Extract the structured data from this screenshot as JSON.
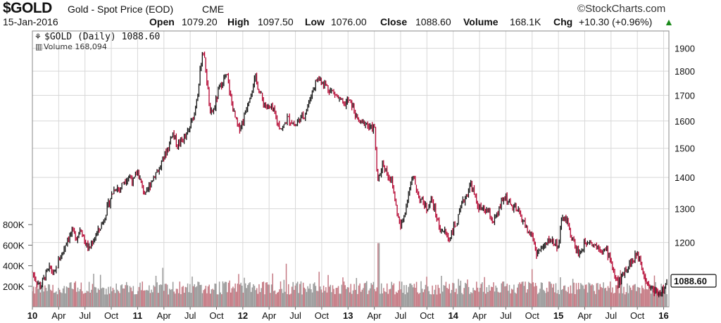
{
  "header": {
    "symbol": "$GOLD",
    "description": "Gold - Spot Price (EOD)",
    "exchange": "CME",
    "brand": "StockCharts.com",
    "date": "15-Jan-2016",
    "open_label": "Open",
    "open": "1079.20",
    "high_label": "High",
    "high": "1097.50",
    "low_label": "Low",
    "low": "1076.00",
    "close_label": "Close",
    "close": "1088.60",
    "volume_label": "Volume",
    "volume": "168.1K",
    "chg_label": "Chg",
    "chg": "+10.30 (+0.96%)",
    "up_color": "#1a8a1a"
  },
  "legend": {
    "price_label": "$GOLD (Daily) 1088.60",
    "volume_label": "Volume 168,094"
  },
  "last_price_tag": "1088.60",
  "chart_data": {
    "type": "ohlc",
    "price_scale": "log",
    "ylim_price": [
      1055,
      1960
    ],
    "price_ticks": [
      1200,
      1300,
      1400,
      1500,
      1600,
      1700,
      1800,
      1900
    ],
    "volume_ticks": [
      "200K",
      "400K",
      "600K",
      "800K"
    ],
    "volume_tick_values": [
      200000,
      400000,
      600000,
      800000
    ],
    "ylim_volume": [
      0,
      1000000
    ],
    "x_ticks": [
      {
        "label": "10",
        "t": 2010.0,
        "year": true
      },
      {
        "label": "Apr",
        "t": 2010.25
      },
      {
        "label": "Jul",
        "t": 2010.5
      },
      {
        "label": "Oct",
        "t": 2010.75
      },
      {
        "label": "11",
        "t": 2011.0,
        "year": true
      },
      {
        "label": "Apr",
        "t": 2011.25
      },
      {
        "label": "Jul",
        "t": 2011.5
      },
      {
        "label": "Oct",
        "t": 2011.75
      },
      {
        "label": "12",
        "t": 2012.0,
        "year": true
      },
      {
        "label": "Apr",
        "t": 2012.25
      },
      {
        "label": "Jul",
        "t": 2012.5
      },
      {
        "label": "Oct",
        "t": 2012.75
      },
      {
        "label": "13",
        "t": 2013.0,
        "year": true
      },
      {
        "label": "Apr",
        "t": 2013.25
      },
      {
        "label": "Jul",
        "t": 2013.5
      },
      {
        "label": "Oct",
        "t": 2013.75
      },
      {
        "label": "14",
        "t": 2014.0,
        "year": true
      },
      {
        "label": "Apr",
        "t": 2014.25
      },
      {
        "label": "Jul",
        "t": 2014.5
      },
      {
        "label": "Oct",
        "t": 2014.75
      },
      {
        "label": "15",
        "t": 2015.0,
        "year": true
      },
      {
        "label": "Apr",
        "t": 2015.25
      },
      {
        "label": "Jul",
        "t": 2015.5
      },
      {
        "label": "Oct",
        "t": 2015.75
      },
      {
        "label": "16",
        "t": 2016.0,
        "year": true
      }
    ],
    "xlim": [
      2010.0,
      2016.05
    ],
    "price_series": [
      [
        2010.0,
        1118
      ],
      [
        2010.04,
        1095
      ],
      [
        2010.08,
        1080
      ],
      [
        2010.12,
        1110
      ],
      [
        2010.17,
        1130
      ],
      [
        2010.21,
        1110
      ],
      [
        2010.25,
        1150
      ],
      [
        2010.29,
        1175
      ],
      [
        2010.33,
        1210
      ],
      [
        2010.38,
        1230
      ],
      [
        2010.42,
        1215
      ],
      [
        2010.46,
        1245
      ],
      [
        2010.5,
        1200
      ],
      [
        2010.54,
        1180
      ],
      [
        2010.58,
        1210
      ],
      [
        2010.63,
        1235
      ],
      [
        2010.67,
        1260
      ],
      [
        2010.71,
        1300
      ],
      [
        2010.75,
        1340
      ],
      [
        2010.79,
        1370
      ],
      [
        2010.83,
        1360
      ],
      [
        2010.87,
        1390
      ],
      [
        2010.92,
        1405
      ],
      [
        2010.96,
        1385
      ],
      [
        2011.0,
        1420
      ],
      [
        2011.04,
        1370
      ],
      [
        2011.08,
        1340
      ],
      [
        2011.12,
        1380
      ],
      [
        2011.17,
        1415
      ],
      [
        2011.21,
        1430
      ],
      [
        2011.25,
        1470
      ],
      [
        2011.29,
        1500
      ],
      [
        2011.33,
        1560
      ],
      [
        2011.38,
        1510
      ],
      [
        2011.42,
        1530
      ],
      [
        2011.46,
        1540
      ],
      [
        2011.5,
        1580
      ],
      [
        2011.54,
        1630
      ],
      [
        2011.58,
        1740
      ],
      [
        2011.62,
        1900
      ],
      [
        2011.65,
        1800
      ],
      [
        2011.69,
        1620
      ],
      [
        2011.73,
        1650
      ],
      [
        2011.77,
        1720
      ],
      [
        2011.81,
        1760
      ],
      [
        2011.85,
        1780
      ],
      [
        2011.88,
        1700
      ],
      [
        2011.92,
        1620
      ],
      [
        2011.96,
        1570
      ],
      [
        2012.0,
        1600
      ],
      [
        2012.04,
        1660
      ],
      [
        2012.08,
        1720
      ],
      [
        2012.12,
        1770
      ],
      [
        2012.17,
        1700
      ],
      [
        2012.21,
        1660
      ],
      [
        2012.25,
        1650
      ],
      [
        2012.29,
        1640
      ],
      [
        2012.33,
        1590
      ],
      [
        2012.38,
        1570
      ],
      [
        2012.42,
        1610
      ],
      [
        2012.46,
        1600
      ],
      [
        2012.5,
        1580
      ],
      [
        2012.54,
        1610
      ],
      [
        2012.58,
        1620
      ],
      [
        2012.62,
        1660
      ],
      [
        2012.67,
        1730
      ],
      [
        2012.71,
        1770
      ],
      [
        2012.75,
        1760
      ],
      [
        2012.79,
        1740
      ],
      [
        2012.83,
        1720
      ],
      [
        2012.87,
        1710
      ],
      [
        2012.92,
        1680
      ],
      [
        2012.96,
        1660
      ],
      [
        2013.0,
        1680
      ],
      [
        2013.04,
        1660
      ],
      [
        2013.08,
        1610
      ],
      [
        2013.12,
        1590
      ],
      [
        2013.17,
        1595
      ],
      [
        2013.21,
        1570
      ],
      [
        2013.25,
        1580
      ],
      [
        2013.28,
        1380
      ],
      [
        2013.33,
        1450
      ],
      [
        2013.38,
        1410
      ],
      [
        2013.42,
        1380
      ],
      [
        2013.46,
        1300
      ],
      [
        2013.5,
        1240
      ],
      [
        2013.54,
        1290
      ],
      [
        2013.58,
        1360
      ],
      [
        2013.62,
        1400
      ],
      [
        2013.67,
        1340
      ],
      [
        2013.71,
        1320
      ],
      [
        2013.75,
        1300
      ],
      [
        2013.79,
        1330
      ],
      [
        2013.83,
        1290
      ],
      [
        2013.87,
        1240
      ],
      [
        2013.92,
        1230
      ],
      [
        2013.96,
        1210
      ],
      [
        2014.0,
        1240
      ],
      [
        2014.04,
        1260
      ],
      [
        2014.08,
        1310
      ],
      [
        2014.12,
        1340
      ],
      [
        2014.17,
        1380
      ],
      [
        2014.21,
        1330
      ],
      [
        2014.25,
        1300
      ],
      [
        2014.29,
        1295
      ],
      [
        2014.33,
        1290
      ],
      [
        2014.38,
        1260
      ],
      [
        2014.42,
        1280
      ],
      [
        2014.46,
        1320
      ],
      [
        2014.5,
        1340
      ],
      [
        2014.54,
        1310
      ],
      [
        2014.58,
        1300
      ],
      [
        2014.62,
        1290
      ],
      [
        2014.67,
        1260
      ],
      [
        2014.71,
        1230
      ],
      [
        2014.75,
        1220
      ],
      [
        2014.79,
        1170
      ],
      [
        2014.83,
        1180
      ],
      [
        2014.87,
        1190
      ],
      [
        2014.92,
        1210
      ],
      [
        2014.96,
        1200
      ],
      [
        2015.0,
        1190
      ],
      [
        2015.04,
        1280
      ],
      [
        2015.08,
        1260
      ],
      [
        2015.12,
        1220
      ],
      [
        2015.17,
        1180
      ],
      [
        2015.21,
        1170
      ],
      [
        2015.25,
        1200
      ],
      [
        2015.29,
        1210
      ],
      [
        2015.33,
        1195
      ],
      [
        2015.38,
        1190
      ],
      [
        2015.42,
        1180
      ],
      [
        2015.46,
        1175
      ],
      [
        2015.5,
        1150
      ],
      [
        2015.54,
        1100
      ],
      [
        2015.58,
        1090
      ],
      [
        2015.62,
        1120
      ],
      [
        2015.67,
        1140
      ],
      [
        2015.71,
        1150
      ],
      [
        2015.75,
        1170
      ],
      [
        2015.79,
        1140
      ],
      [
        2015.83,
        1100
      ],
      [
        2015.87,
        1080
      ],
      [
        2015.92,
        1070
      ],
      [
        2015.96,
        1065
      ],
      [
        2016.0,
        1075
      ],
      [
        2016.03,
        1088
      ]
    ],
    "volume_scale_note": "Volume 168,094"
  }
}
